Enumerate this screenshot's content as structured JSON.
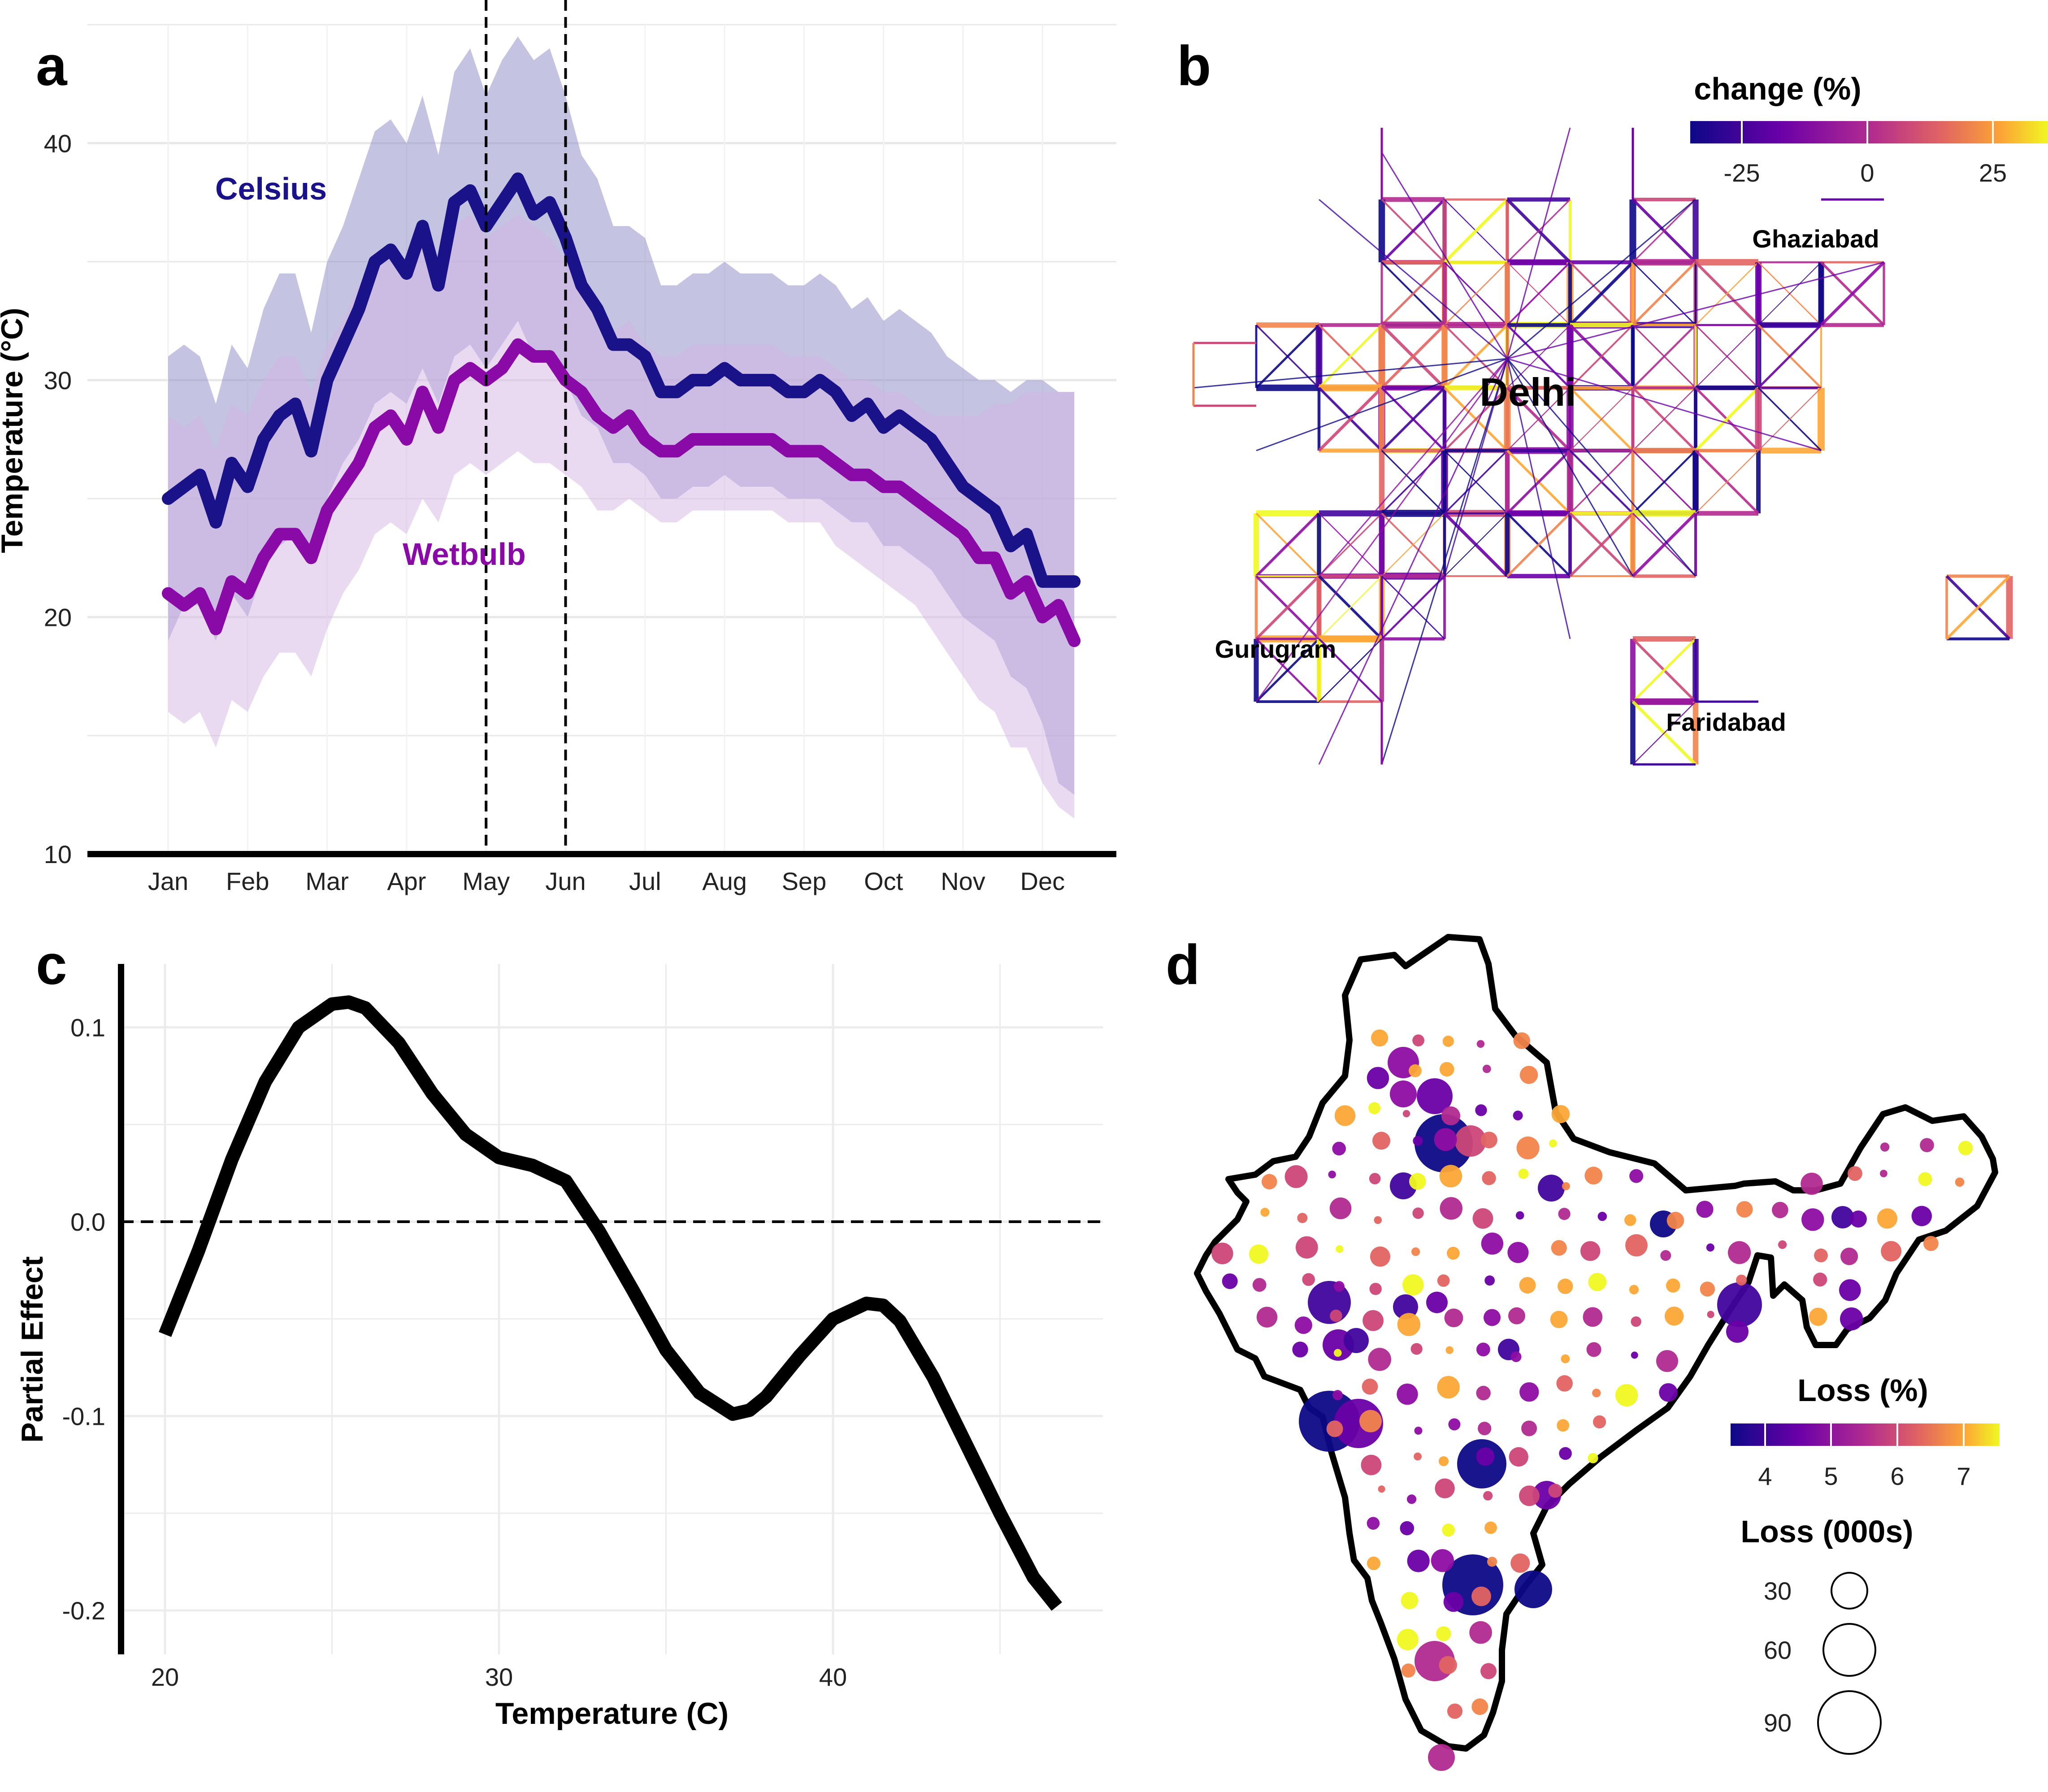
{
  "panels": {
    "a": {
      "letter": "a",
      "chart_data": {
        "type": "line",
        "ylabel": "Temperature (°C)",
        "xlabel": "",
        "ylim": [
          10,
          45
        ],
        "yticks": [
          10,
          20,
          30,
          40
        ],
        "months": [
          "Jan",
          "Feb",
          "Mar",
          "Apr",
          "May",
          "Jun",
          "Jul",
          "Aug",
          "Sep",
          "Oct",
          "Nov",
          "Dec"
        ],
        "vlines_at_month": [
          "May",
          "Jun"
        ],
        "series": [
          {
            "name": "Celsius",
            "color": "#1a1288",
            "band_color": "#8a88c4",
            "x_month": [
              0.0,
              0.2,
              0.4,
              0.6,
              0.8,
              1.0,
              1.2,
              1.4,
              1.6,
              1.8,
              2.0,
              2.2,
              2.4,
              2.6,
              2.8,
              3.0,
              3.2,
              3.4,
              3.6,
              3.8,
              4.0,
              4.2,
              4.4,
              4.6,
              4.8,
              5.0,
              5.2,
              5.4,
              5.6,
              5.8,
              6.0,
              6.2,
              6.4,
              6.6,
              6.8,
              7.0,
              7.2,
              7.4,
              7.6,
              7.8,
              8.0,
              8.2,
              8.4,
              8.6,
              8.8,
              9.0,
              9.2,
              9.4,
              9.6,
              9.8,
              10.0,
              10.2,
              10.4,
              10.6,
              10.8,
              11.0,
              11.2,
              11.4
            ],
            "mean": [
              25.0,
              25.5,
              26.0,
              24.0,
              26.5,
              25.5,
              27.5,
              28.5,
              29.0,
              27.0,
              30.0,
              31.5,
              33.0,
              35.0,
              35.5,
              34.5,
              36.5,
              34.0,
              37.5,
              38.0,
              36.5,
              37.5,
              38.5,
              37.0,
              37.5,
              36.0,
              34.0,
              33.0,
              31.5,
              31.5,
              31.0,
              29.5,
              29.5,
              30.0,
              30.0,
              30.5,
              30.0,
              30.0,
              30.0,
              29.5,
              29.5,
              30.0,
              29.5,
              28.5,
              29.0,
              28.0,
              28.5,
              28.0,
              27.5,
              26.5,
              25.5,
              25.0,
              24.5,
              23.0,
              23.5,
              21.5,
              21.5,
              21.5
            ],
            "lower": [
              19.0,
              20.5,
              20.5,
              19.0,
              21.0,
              20.0,
              22.0,
              23.0,
              23.5,
              22.5,
              25.0,
              26.5,
              27.5,
              29.0,
              29.5,
              29.0,
              30.5,
              29.0,
              31.0,
              31.5,
              30.5,
              31.5,
              32.5,
              31.0,
              31.0,
              30.0,
              28.5,
              28.0,
              26.5,
              26.5,
              26.0,
              25.0,
              25.0,
              25.5,
              25.5,
              26.0,
              25.5,
              25.5,
              25.5,
              25.0,
              25.0,
              25.0,
              24.5,
              24.0,
              24.0,
              23.0,
              23.0,
              22.5,
              22.0,
              21.0,
              20.0,
              19.5,
              19.0,
              17.5,
              17.0,
              15.5,
              13.0,
              12.5
            ],
            "upper": [
              31.0,
              31.5,
              31.0,
              29.0,
              31.5,
              30.5,
              33.0,
              34.5,
              34.5,
              32.0,
              35.0,
              36.5,
              38.5,
              40.5,
              41.0,
              40.0,
              42.0,
              39.5,
              43.0,
              44.0,
              42.0,
              43.5,
              44.5,
              43.5,
              44.0,
              42.0,
              39.5,
              38.5,
              36.5,
              36.5,
              36.0,
              34.0,
              34.0,
              34.5,
              34.5,
              35.0,
              34.5,
              34.5,
              34.5,
              34.0,
              34.0,
              34.5,
              34.0,
              33.0,
              33.5,
              32.5,
              33.0,
              32.5,
              32.0,
              31.0,
              30.5,
              30.0,
              30.0,
              29.5,
              30.0,
              30.0,
              29.5,
              29.5
            ]
          },
          {
            "name": "Wetbulb",
            "color": "#8a0aa8",
            "band_color": "#d4b6e6",
            "x_month": [
              0.0,
              0.2,
              0.4,
              0.6,
              0.8,
              1.0,
              1.2,
              1.4,
              1.6,
              1.8,
              2.0,
              2.2,
              2.4,
              2.6,
              2.8,
              3.0,
              3.2,
              3.4,
              3.6,
              3.8,
              4.0,
              4.2,
              4.4,
              4.6,
              4.8,
              5.0,
              5.2,
              5.4,
              5.6,
              5.8,
              6.0,
              6.2,
              6.4,
              6.6,
              6.8,
              7.0,
              7.2,
              7.4,
              7.6,
              7.8,
              8.0,
              8.2,
              8.4,
              8.6,
              8.8,
              9.0,
              9.2,
              9.4,
              9.6,
              9.8,
              10.0,
              10.2,
              10.4,
              10.6,
              10.8,
              11.0,
              11.2,
              11.4
            ],
            "mean": [
              21.0,
              20.5,
              21.0,
              19.5,
              21.5,
              21.0,
              22.5,
              23.5,
              23.5,
              22.5,
              24.5,
              25.5,
              26.5,
              28.0,
              28.5,
              27.5,
              29.5,
              28.0,
              30.0,
              30.5,
              30.0,
              30.5,
              31.5,
              31.0,
              31.0,
              30.0,
              29.5,
              28.5,
              28.0,
              28.5,
              27.5,
              27.0,
              27.0,
              27.5,
              27.5,
              27.5,
              27.5,
              27.5,
              27.5,
              27.0,
              27.0,
              27.0,
              26.5,
              26.0,
              26.0,
              25.5,
              25.5,
              25.0,
              24.5,
              24.0,
              23.5,
              22.5,
              22.5,
              21.0,
              21.5,
              20.0,
              20.5,
              19.0
            ],
            "lower": [
              16.0,
              15.5,
              16.0,
              14.5,
              16.5,
              16.0,
              17.5,
              18.5,
              18.5,
              17.5,
              19.5,
              21.0,
              22.0,
              23.5,
              24.0,
              23.5,
              25.0,
              24.0,
              26.0,
              26.5,
              26.0,
              26.5,
              27.0,
              26.5,
              26.5,
              26.0,
              25.5,
              24.5,
              24.5,
              25.0,
              24.5,
              24.0,
              24.0,
              24.5,
              24.5,
              24.5,
              24.5,
              24.5,
              24.5,
              24.0,
              24.0,
              24.0,
              23.0,
              22.5,
              22.0,
              21.5,
              21.0,
              20.5,
              19.5,
              18.5,
              17.5,
              16.5,
              16.0,
              14.5,
              14.5,
              13.0,
              12.0,
              11.5
            ],
            "upper": [
              28.5,
              28.0,
              28.5,
              27.0,
              29.0,
              28.5,
              30.0,
              31.0,
              31.0,
              29.5,
              31.5,
              32.5,
              34.0,
              35.0,
              35.5,
              34.5,
              36.0,
              34.5,
              36.5,
              37.0,
              36.0,
              36.5,
              37.0,
              36.5,
              36.0,
              35.0,
              34.0,
              33.0,
              32.0,
              32.5,
              31.5,
              31.0,
              31.0,
              31.5,
              31.5,
              31.5,
              31.5,
              31.5,
              31.5,
              31.0,
              31.0,
              31.0,
              30.5,
              30.0,
              30.0,
              29.5,
              29.5,
              29.0,
              28.5,
              28.5,
              28.5,
              28.5,
              29.0,
              29.0,
              29.5,
              29.5,
              29.5,
              29.5
            ]
          }
        ]
      }
    },
    "b": {
      "letter": "b",
      "legend_title": "change (%)",
      "legend_ticks": [
        "-25",
        "0",
        "25"
      ],
      "labels": {
        "delhi": "Delhi",
        "ghaziabad": "Ghaziabad",
        "gurugram": "Gurugram",
        "faridabad": "Faridabad"
      },
      "colors": {
        "low": "#0d0887",
        "mid": "#cc4778",
        "high": "#f0f921"
      }
    },
    "c": {
      "letter": "c",
      "chart_data": {
        "type": "line",
        "xlabel": "Temperature (C)",
        "ylabel": "Partial Effect",
        "xlim": [
          19,
          47
        ],
        "ylim": [
          -0.22,
          0.13
        ],
        "xticks": [
          20,
          30,
          40
        ],
        "yticks": [
          -0.2,
          -0.1,
          0.0,
          0.1
        ],
        "ytick_labels": [
          "-0.2",
          "-0.1",
          "0.0",
          "0.1"
        ],
        "hline": 0.0,
        "x": [
          20,
          21,
          22,
          23,
          24,
          25,
          25.5,
          26,
          27,
          28,
          29,
          30,
          31,
          32,
          33,
          34,
          35,
          36,
          37,
          37.5,
          38,
          39,
          40,
          41,
          41.5,
          42,
          43,
          44,
          45,
          46,
          46.7
        ],
        "y": [
          -0.058,
          -0.015,
          0.032,
          0.072,
          0.1,
          0.112,
          0.113,
          0.11,
          0.092,
          0.066,
          0.045,
          0.033,
          0.029,
          0.021,
          -0.005,
          -0.035,
          -0.066,
          -0.088,
          -0.099,
          -0.097,
          -0.09,
          -0.069,
          -0.05,
          -0.042,
          -0.043,
          -0.051,
          -0.08,
          -0.115,
          -0.15,
          -0.183,
          -0.198
        ]
      }
    },
    "d": {
      "letter": "d",
      "legend_color_title": "Loss (%)",
      "legend_color_ticks": [
        "4",
        "5",
        "6",
        "7"
      ],
      "legend_size_title": "Loss (000s)",
      "legend_size_values": [
        "30",
        "60",
        "90"
      ],
      "colors": {
        "low": "#0d0887",
        "mid": "#cc4778",
        "high": "#f0f921"
      }
    }
  }
}
